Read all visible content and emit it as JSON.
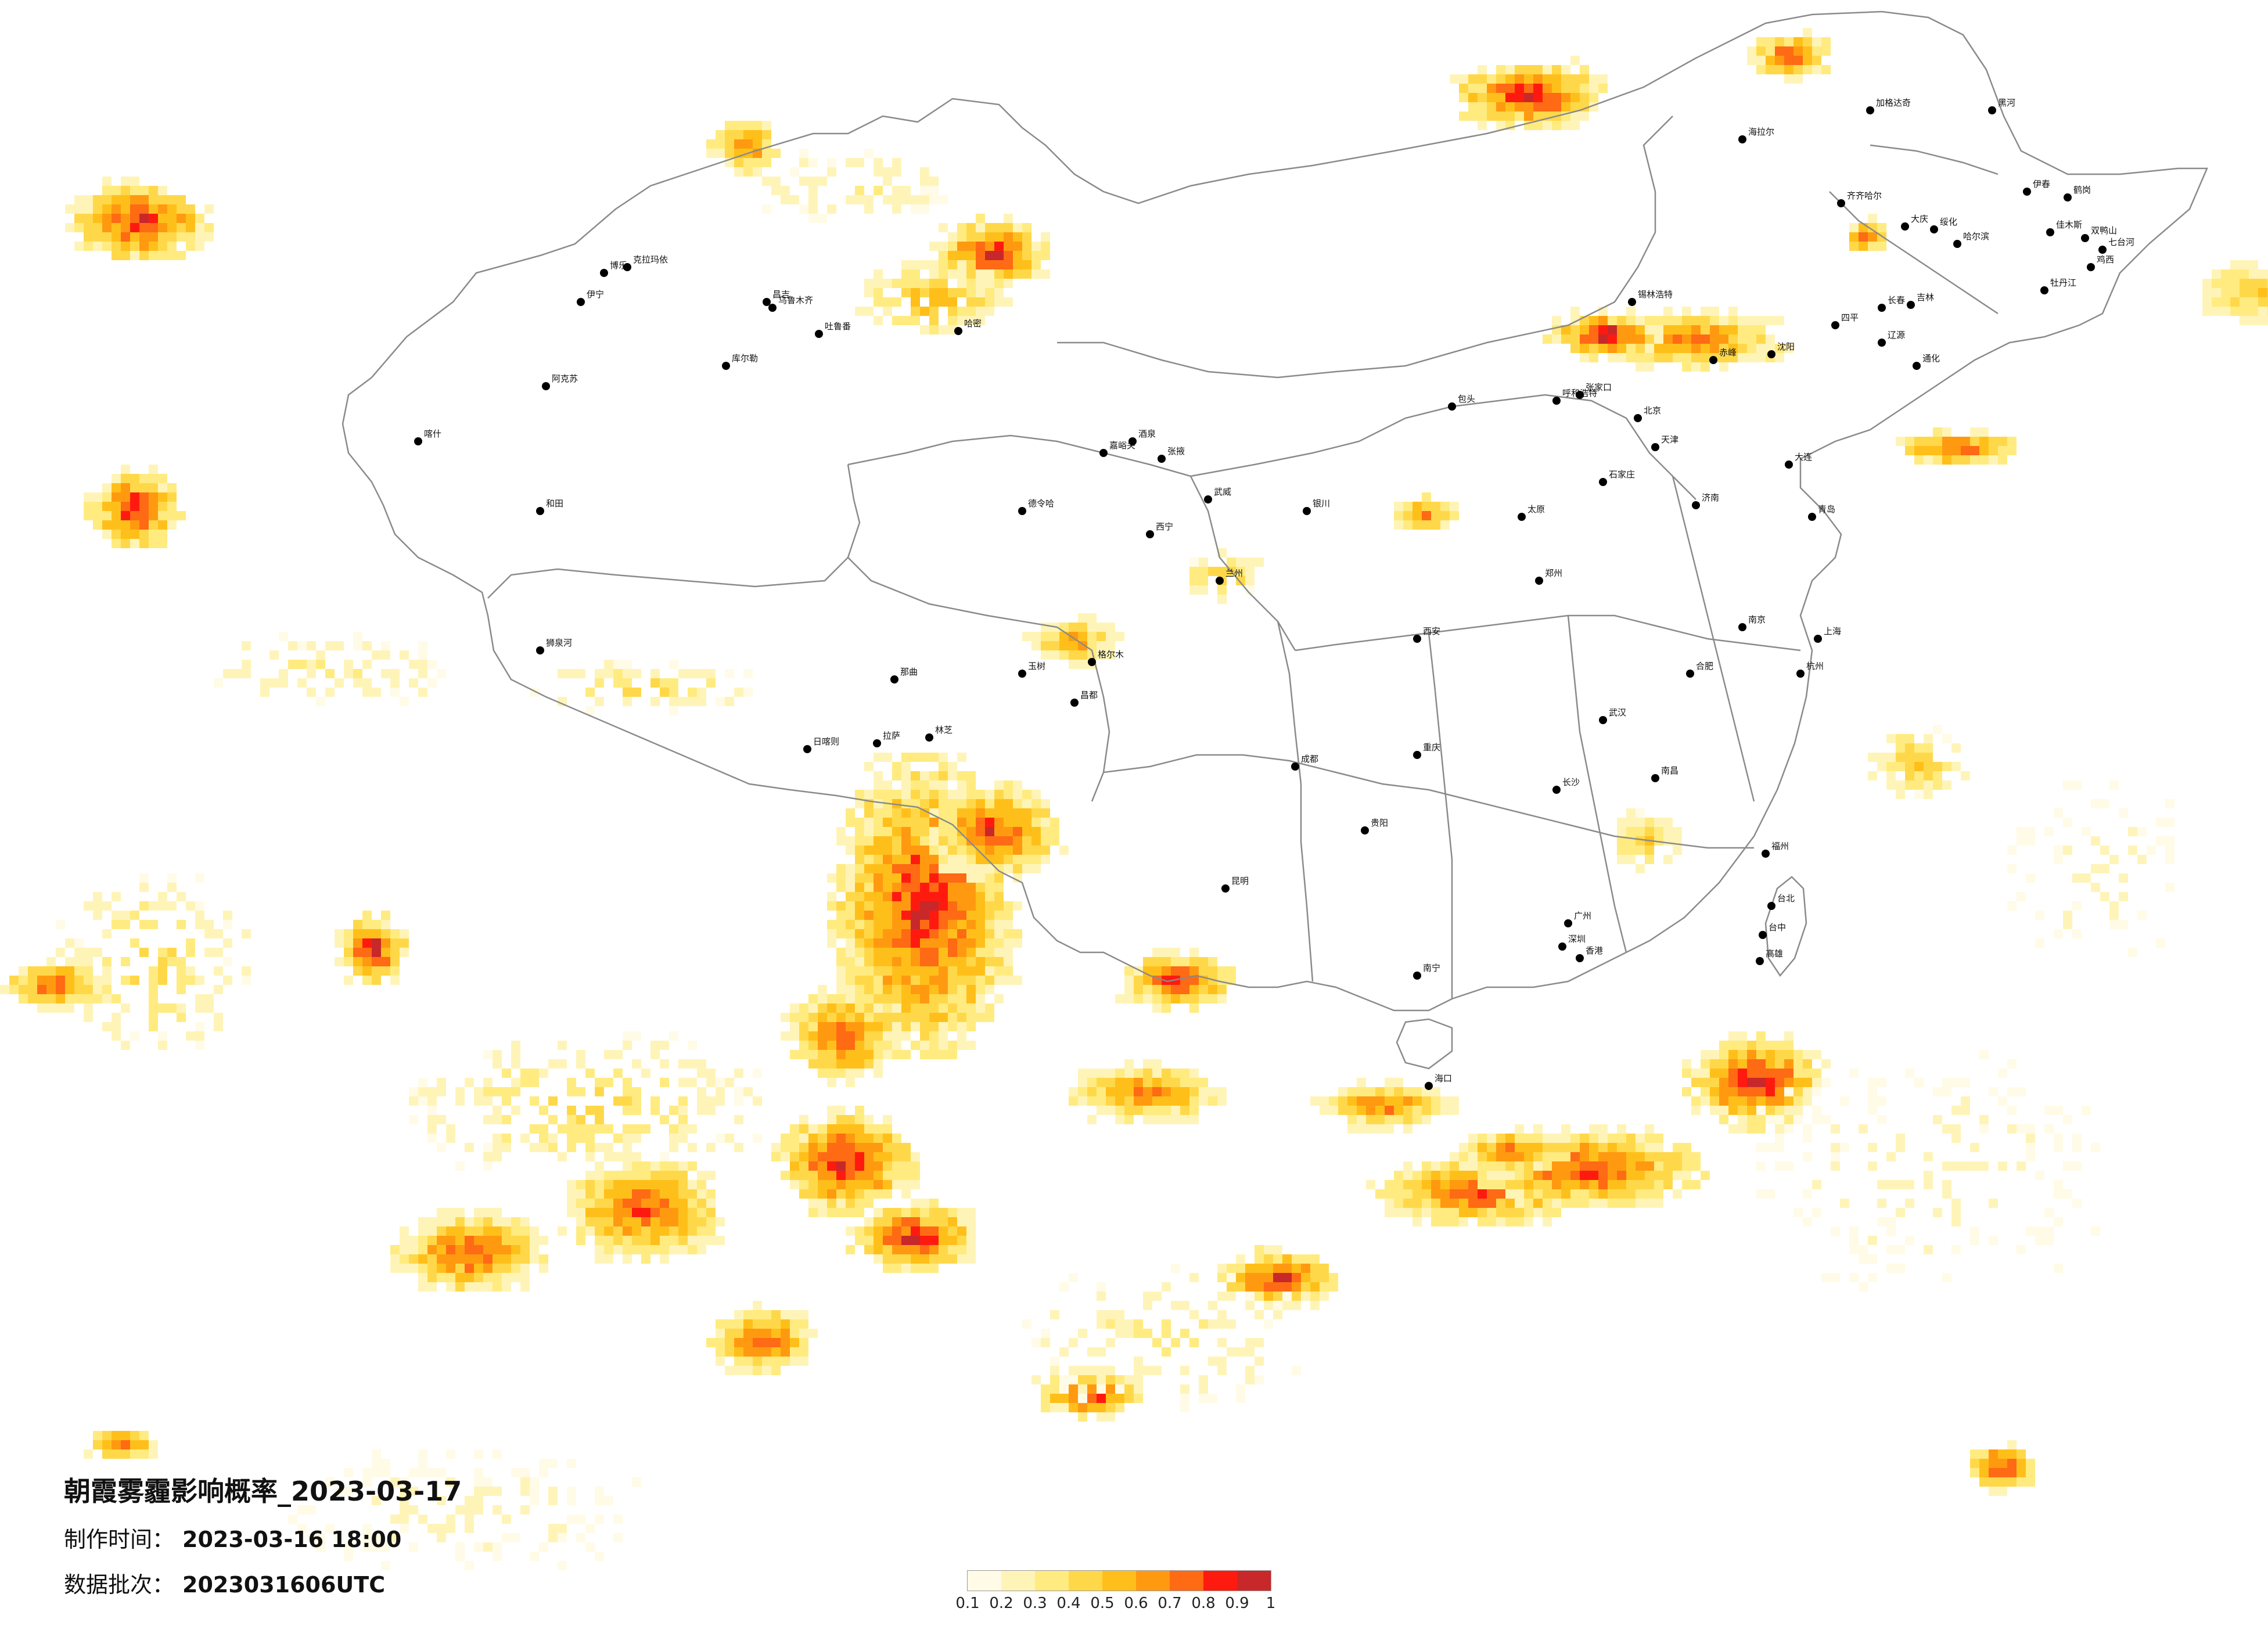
{
  "title": "朝霞雾霾影响概率_2023-03-17",
  "made_time_label": "制作时间：",
  "made_time_value": "2023-03-16 18:00",
  "batch_label": "数据批次：",
  "batch_value": "2023031606UTC",
  "legend": {
    "ticks": [
      "0.1",
      "0.2",
      "0.3",
      "0.4",
      "0.5",
      "0.6",
      "0.7",
      "0.8",
      "0.9",
      "1"
    ],
    "colors": [
      "#fffbe6",
      "#fff4b8",
      "#ffeb80",
      "#ffd84a",
      "#ffbf1a",
      "#ff9a10",
      "#ff6a14",
      "#ff1a10",
      "#c8282a"
    ]
  },
  "colors": {
    "border": "#8a8a8a",
    "city": "#000000",
    "background": "#ffffff"
  },
  "cities": [
    "克拉玛依",
    "博乐",
    "伊宁",
    "昌吉",
    "乌鲁木齐",
    "吐鲁番",
    "哈密",
    "库尔勒",
    "阿克苏",
    "喀什",
    "和田",
    "海拉尔",
    "加格达奇",
    "黑河",
    "齐齐哈尔",
    "大庆",
    "绥化",
    "伊春",
    "鹤岗",
    "佳木斯",
    "双鸭山",
    "七台河",
    "鸡西",
    "牡丹江",
    "哈尔滨",
    "长春",
    "吉林",
    "四平",
    "辽源",
    "通化",
    "锡林浩特",
    "赤峰",
    "沈阳",
    "大连",
    "呼和浩特",
    "包头",
    "张家口",
    "北京",
    "天津",
    "石家庄",
    "太原",
    "济南",
    "青岛",
    "郑州",
    "西安",
    "兰州",
    "西宁",
    "银川",
    "嘉峪关",
    "酒泉",
    "张掖",
    "武威",
    "格尔木",
    "德令哈",
    "玉树",
    "昌都",
    "拉萨",
    "日喀则",
    "林芝",
    "那曲",
    "狮泉河",
    "成都",
    "重庆",
    "贵阳",
    "昆明",
    "南宁",
    "海口",
    "广州",
    "深圳",
    "香港",
    "福州",
    "台北",
    "台中",
    "高雄",
    "杭州",
    "上海",
    "南京",
    "合肥",
    "武汉",
    "长沙",
    "南昌"
  ]
}
